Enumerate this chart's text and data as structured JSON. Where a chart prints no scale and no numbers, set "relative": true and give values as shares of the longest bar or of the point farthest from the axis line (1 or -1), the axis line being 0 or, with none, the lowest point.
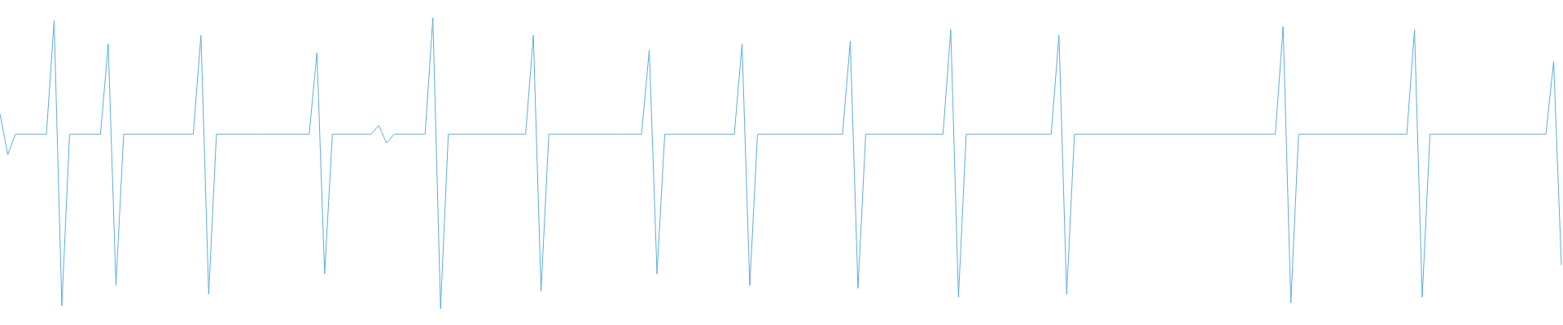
{
  "chart_data": {
    "type": "line",
    "relative": true,
    "marker": "none",
    "grid": false,
    "categories": [
      null,
      null,
      null,
      null,
      null,
      null,
      null,
      null,
      null,
      null,
      null,
      null,
      null,
      null,
      null,
      null,
      null,
      null,
      null,
      null,
      null,
      null,
      null,
      null,
      null,
      null,
      null,
      null,
      null,
      null,
      null,
      null,
      null,
      null,
      null,
      null,
      null,
      null,
      null,
      null,
      null,
      null,
      null,
      null,
      null,
      null,
      null,
      null,
      null,
      null,
      null,
      null,
      null,
      null,
      null,
      null,
      null,
      null,
      null,
      null,
      null,
      null,
      null,
      null,
      null,
      null,
      null,
      null,
      null,
      null,
      null,
      null,
      null,
      null,
      null,
      null,
      null,
      null,
      null,
      null,
      null,
      null,
      null,
      null,
      null,
      null,
      null,
      null,
      null,
      null,
      null,
      null,
      null,
      null,
      null,
      null,
      null,
      null,
      null,
      null,
      null,
      null,
      null,
      null,
      null,
      null,
      null,
      null,
      null,
      null,
      null,
      null,
      null,
      null,
      null,
      null,
      null,
      null,
      null,
      null,
      null,
      null,
      null,
      null,
      null,
      null,
      null,
      null,
      null,
      null,
      null,
      null,
      null,
      null,
      null,
      null,
      null,
      null,
      null,
      null,
      null,
      null,
      null,
      null,
      null,
      null,
      null,
      null,
      null,
      null,
      null,
      null,
      null,
      null,
      null,
      null,
      null,
      null,
      null,
      null,
      null,
      null,
      null,
      null,
      null,
      null,
      null,
      null,
      null,
      null,
      null,
      null,
      null,
      null,
      null,
      null,
      null,
      null,
      null,
      null,
      null,
      null,
      null,
      null,
      null,
      null,
      null,
      null,
      null,
      null,
      null,
      null,
      null,
      null,
      null,
      null,
      null,
      null,
      null,
      null,
      null,
      null,
      null
    ],
    "series": [
      {
        "color": "#5aade2",
        "values": [
          0.67,
          0.53,
          0.6,
          0.6,
          0.6,
          0.6,
          0.6,
          0.99,
          0.01,
          0.6,
          0.6,
          0.6,
          0.6,
          0.6,
          0.91,
          0.08,
          0.6,
          0.6,
          0.6,
          0.6,
          0.6,
          0.6,
          0.6,
          0.6,
          0.6,
          0.6,
          0.94,
          0.05,
          0.6,
          0.6,
          0.6,
          0.6,
          0.6,
          0.6,
          0.6,
          0.6,
          0.6,
          0.6,
          0.6,
          0.6,
          0.6,
          0.88,
          0.12,
          0.6,
          0.6,
          0.6,
          0.6,
          0.6,
          0.6,
          0.63,
          0.57,
          0.6,
          0.6,
          0.6,
          0.6,
          0.6,
          1,
          0,
          0.6,
          0.6,
          0.6,
          0.6,
          0.6,
          0.6,
          0.6,
          0.6,
          0.6,
          0.6,
          0.6,
          0.94,
          0.06,
          0.6,
          0.6,
          0.6,
          0.6,
          0.6,
          0.6,
          0.6,
          0.6,
          0.6,
          0.6,
          0.6,
          0.6,
          0.6,
          0.89,
          0.12,
          0.6,
          0.6,
          0.6,
          0.6,
          0.6,
          0.6,
          0.6,
          0.6,
          0.6,
          0.6,
          0.91,
          0.08,
          0.6,
          0.6,
          0.6,
          0.6,
          0.6,
          0.6,
          0.6,
          0.6,
          0.6,
          0.6,
          0.6,
          0.6,
          0.92,
          0.07,
          0.6,
          0.6,
          0.6,
          0.6,
          0.6,
          0.6,
          0.6,
          0.6,
          0.6,
          0.6,
          0.6,
          0.96,
          0.04,
          0.6,
          0.6,
          0.6,
          0.6,
          0.6,
          0.6,
          0.6,
          0.6,
          0.6,
          0.6,
          0.6,
          0.6,
          0.94,
          0.05,
          0.6,
          0.6,
          0.6,
          0.6,
          0.6,
          0.6,
          0.6,
          0.6,
          0.6,
          0.6,
          0.6,
          0.6,
          0.6,
          0.6,
          0.6,
          0.6,
          0.6,
          0.6,
          0.6,
          0.6,
          0.6,
          0.6,
          0.6,
          0.6,
          0.6,
          0.6,
          0.6,
          0.97,
          0.02,
          0.6,
          0.6,
          0.6,
          0.6,
          0.6,
          0.6,
          0.6,
          0.6,
          0.6,
          0.6,
          0.6,
          0.6,
          0.6,
          0.6,
          0.6,
          0.96,
          0.04,
          0.6,
          0.6,
          0.6,
          0.6,
          0.6,
          0.6,
          0.6,
          0.6,
          0.6,
          0.6,
          0.6,
          0.6,
          0.6,
          0.6,
          0.6,
          0.6,
          0.85,
          0.15
        ]
      }
    ]
  }
}
